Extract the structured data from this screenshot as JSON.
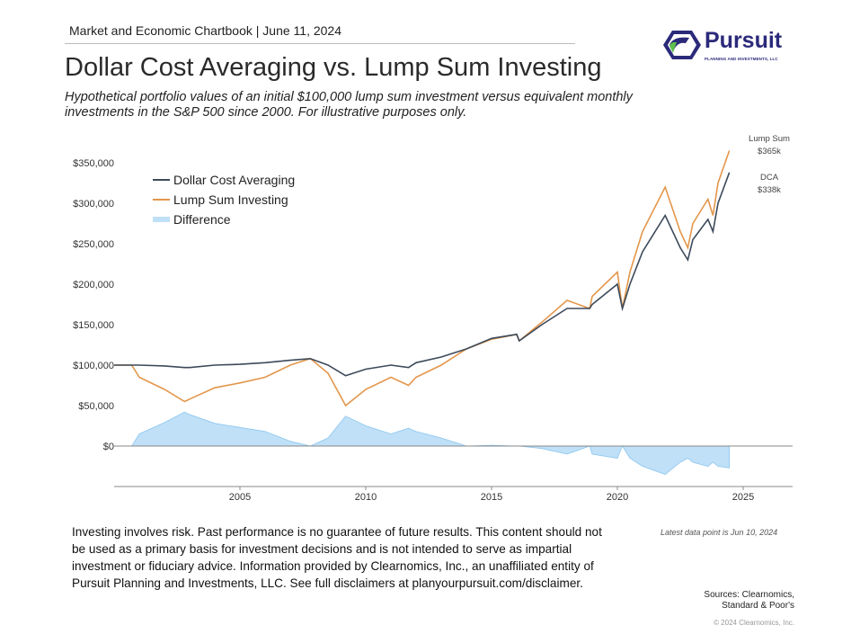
{
  "header": {
    "chartbook": "Market and Economic Chartbook | June 11, 2024",
    "title": "Dollar Cost Averaging vs. Lump Sum Investing",
    "subtitle": "Hypothetical portfolio values of an initial $100,000 lump sum investment versus equivalent monthly investments in the S&P 500 since 2000. For illustrative purposes only."
  },
  "logo": {
    "name": "Pursuit",
    "tagline": "PLANNING AND INVESTMENTS, LLC"
  },
  "colors": {
    "dca": "#3d4a5a",
    "lump": "#e3964a",
    "diff": "#bfe0f7",
    "diff_stroke": "#8cc6ef",
    "navy": "#2b2a7a",
    "green": "#5cc04a"
  },
  "chart_data": {
    "type": "line",
    "x_ticks": [
      2005,
      2010,
      2015,
      2020,
      2025
    ],
    "y_ticks": [
      0,
      50000,
      100000,
      150000,
      200000,
      250000,
      300000,
      350000
    ],
    "y_tick_labels": [
      "$0",
      "$50,000",
      "$100,000",
      "$150,000",
      "$200,000",
      "$250,000",
      "$300,000",
      "$350,000"
    ],
    "xlim": [
      2000,
      2026.8
    ],
    "ylim": [
      -50000,
      350000
    ],
    "legend": [
      "Dollar Cost Averaging",
      "Lump Sum Investing",
      "Difference"
    ],
    "legend_position": "top-left",
    "x": [
      2000,
      2000.7,
      2001,
      2002,
      2002.8,
      2003,
      2004,
      2005,
      2006,
      2007,
      2007.8,
      2008.5,
      2009.2,
      2010,
      2011,
      2011.7,
      2012,
      2013,
      2014,
      2015,
      2016,
      2016.1,
      2017,
      2018,
      2018.9,
      2019,
      2020,
      2020.2,
      2020.5,
      2021,
      2021.9,
      2022.5,
      2022.8,
      2023,
      2023.6,
      2023.8,
      2024,
      2024.45
    ],
    "series": [
      {
        "name": "Dollar Cost Averaging",
        "values": [
          100000,
          100000,
          100000,
          99000,
          97000,
          97000,
          100000,
          101000,
          103000,
          106000,
          108000,
          100000,
          87000,
          95000,
          100000,
          97000,
          103000,
          110000,
          120000,
          133000,
          138000,
          130000,
          150000,
          170000,
          170000,
          175000,
          200000,
          170000,
          200000,
          240000,
          285000,
          245000,
          230000,
          255000,
          280000,
          265000,
          300000,
          338000
        ]
      },
      {
        "name": "Lump Sum Investing",
        "values": [
          100000,
          100000,
          85000,
          70000,
          55000,
          58000,
          72000,
          78000,
          85000,
          100000,
          108000,
          90000,
          50000,
          70000,
          85000,
          75000,
          85000,
          100000,
          120000,
          132000,
          138000,
          130000,
          153000,
          180000,
          170000,
          185000,
          215000,
          170000,
          215000,
          265000,
          320000,
          265000,
          245000,
          275000,
          305000,
          285000,
          325000,
          365000
        ]
      }
    ],
    "end_labels": [
      {
        "name": "Lump Sum",
        "value": "$365k"
      },
      {
        "name": "DCA",
        "value": "$338k"
      }
    ]
  },
  "footer": {
    "disclaimer": "Investing involves risk. Past performance  is no guarantee of future results. This content should not be used as a primary basis for investment decisions and is not intended to serve as impartial investment or fiduciary advice. Information provided by Clearnomics, Inc., an unaffiliated entity of Pursuit Planning and Investments, LLC. See full disclaimers at planyourpursuit.com/disclaimer.",
    "latest": "Latest data point is Jun 10, 2024",
    "sources1": "Sources: Clearnomics,",
    "sources2": "Standard & Poor's",
    "copyright": "© 2024 Clearnomics, Inc."
  }
}
